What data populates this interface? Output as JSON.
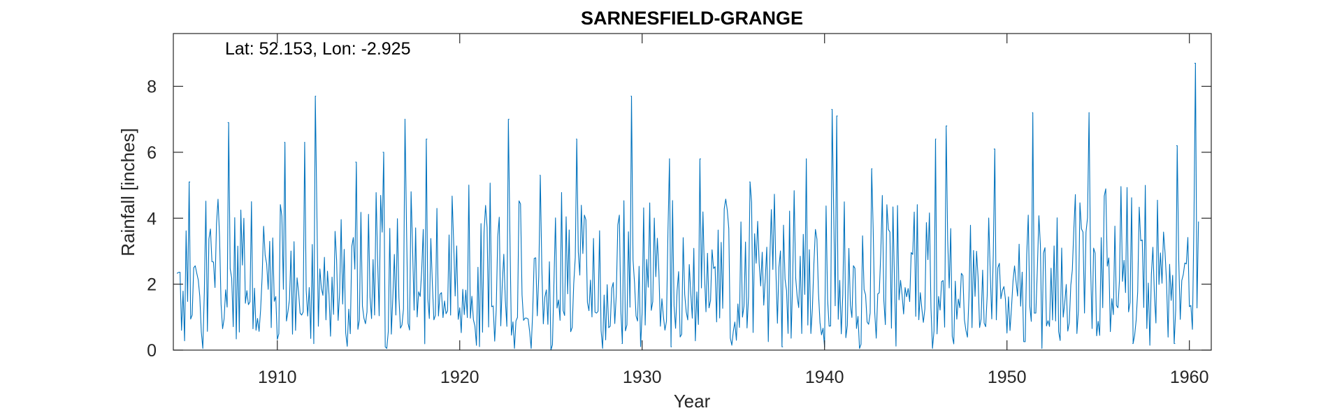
{
  "chart_data": {
    "type": "line",
    "title": "SARNESFIELD-GRANGE",
    "annotation": "Lat: 52.153, Lon: -2.925",
    "xlabel": "Year",
    "ylabel": "Rainfall [inches]",
    "xlim": [
      1904.3,
      1961.2
    ],
    "ylim": [
      0,
      9.6
    ],
    "xticks": [
      1910,
      1920,
      1930,
      1940,
      1950,
      1960
    ],
    "xtick_labels": [
      "1910",
      "1920",
      "1930",
      "1940",
      "1950",
      "1960"
    ],
    "yticks": [
      0,
      2,
      4,
      6,
      8
    ],
    "ytick_labels": [
      "0",
      "2",
      "4",
      "6",
      "8"
    ],
    "grid": false,
    "series": [
      {
        "color": "#0072BD",
        "sampling": "monthly",
        "start_year": 1904.5,
        "end_year": 1960.5,
        "peaks": [
          {
            "x": 1905.2,
            "y": 5.1
          },
          {
            "x": 1907.3,
            "y": 6.9
          },
          {
            "x": 1910.4,
            "y": 6.3
          },
          {
            "x": 1911.5,
            "y": 6.3
          },
          {
            "x": 1912.1,
            "y": 7.7
          },
          {
            "x": 1914.3,
            "y": 5.7
          },
          {
            "x": 1915.8,
            "y": 6.0
          },
          {
            "x": 1917.0,
            "y": 7.0
          },
          {
            "x": 1918.2,
            "y": 6.4
          },
          {
            "x": 1922.7,
            "y": 7.0
          },
          {
            "x": 1924.4,
            "y": 5.3
          },
          {
            "x": 1926.4,
            "y": 6.4
          },
          {
            "x": 1929.4,
            "y": 7.7
          },
          {
            "x": 1931.5,
            "y": 5.8
          },
          {
            "x": 1933.2,
            "y": 5.8
          },
          {
            "x": 1935.9,
            "y": 5.1
          },
          {
            "x": 1939.0,
            "y": 5.8
          },
          {
            "x": 1940.4,
            "y": 7.3
          },
          {
            "x": 1940.7,
            "y": 7.1
          },
          {
            "x": 1942.6,
            "y": 5.5
          },
          {
            "x": 1946.1,
            "y": 6.4
          },
          {
            "x": 1946.7,
            "y": 6.8
          },
          {
            "x": 1949.3,
            "y": 6.1
          },
          {
            "x": 1951.4,
            "y": 7.2
          },
          {
            "x": 1954.5,
            "y": 7.2
          },
          {
            "x": 1959.3,
            "y": 6.2
          },
          {
            "x": 1960.3,
            "y": 8.7
          }
        ],
        "troughs": [
          {
            "x": 1912.0,
            "y": 0.2
          },
          {
            "x": 1925.0,
            "y": 0.0
          },
          {
            "x": 1928.9,
            "y": 0.2
          },
          {
            "x": 1931.6,
            "y": 0.1
          },
          {
            "x": 1937.7,
            "y": 0.1
          },
          {
            "x": 1940.0,
            "y": 0.1
          },
          {
            "x": 1956.9,
            "y": 0.2
          },
          {
            "x": 1959.2,
            "y": 0.2
          }
        ],
        "ending_value": {
          "x": 1960.5,
          "y": 3.9
        }
      }
    ]
  }
}
